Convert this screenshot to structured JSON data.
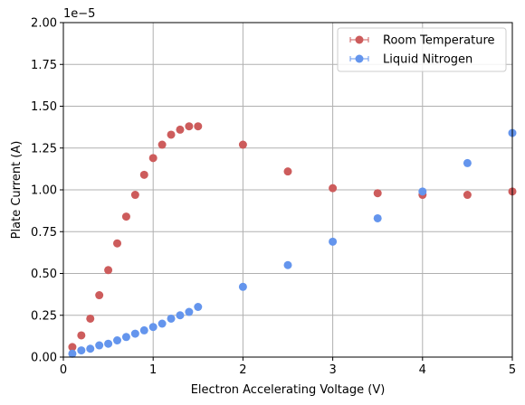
{
  "chart_data": {
    "type": "scatter",
    "xlabel": "Electron Accelerating Voltage (V)",
    "ylabel": "Plate Current (A)",
    "y_offset_label": "1e−5",
    "xlim": [
      0,
      5
    ],
    "ylim": [
      0,
      2.0
    ],
    "y_scale_factor": 1e-05,
    "grid": true,
    "legend_position": "top-right",
    "x_ticks": [
      0,
      1,
      2,
      3,
      4,
      5
    ],
    "x_tick_labels": [
      "0",
      "1",
      "2",
      "3",
      "4",
      "5"
    ],
    "y_ticks": [
      0,
      0.25,
      0.5,
      0.75,
      1.0,
      1.25,
      1.5,
      1.75,
      2.0
    ],
    "y_tick_labels": [
      "0.00",
      "0.25",
      "0.50",
      "0.75",
      "1.00",
      "1.25",
      "1.50",
      "1.75",
      "2.00"
    ],
    "series": [
      {
        "name": "Room Temperature",
        "color": "#cd5c5c",
        "x": [
          0.1,
          0.2,
          0.3,
          0.4,
          0.5,
          0.6,
          0.7,
          0.8,
          0.9,
          1.0,
          1.1,
          1.2,
          1.3,
          1.4,
          1.5,
          2.0,
          2.5,
          3.0,
          3.5,
          4.0,
          4.5,
          5.0
        ],
        "y": [
          0.06,
          0.13,
          0.23,
          0.37,
          0.52,
          0.68,
          0.84,
          0.97,
          1.09,
          1.19,
          1.27,
          1.33,
          1.36,
          1.38,
          1.38,
          1.27,
          1.11,
          1.01,
          0.98,
          0.97,
          0.97,
          0.99
        ]
      },
      {
        "name": "Liquid Nitrogen",
        "color": "#6495ed",
        "x": [
          0.1,
          0.2,
          0.3,
          0.4,
          0.5,
          0.6,
          0.7,
          0.8,
          0.9,
          1.0,
          1.1,
          1.2,
          1.3,
          1.4,
          1.5,
          2.0,
          2.5,
          3.0,
          3.5,
          4.0,
          4.5,
          5.0
        ],
        "y": [
          0.02,
          0.04,
          0.05,
          0.07,
          0.08,
          0.1,
          0.12,
          0.14,
          0.16,
          0.18,
          0.2,
          0.23,
          0.25,
          0.27,
          0.3,
          0.42,
          0.55,
          0.69,
          0.83,
          0.99,
          1.16,
          1.34
        ]
      }
    ]
  }
}
